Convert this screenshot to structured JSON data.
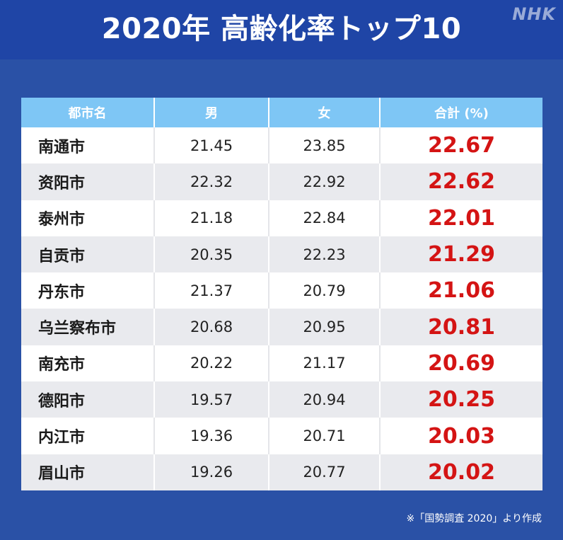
{
  "title": "2020年 高齢化率トップ10",
  "logo": "NHK",
  "table": {
    "headers": [
      "都市名",
      "男",
      "女",
      "合計 (%)"
    ],
    "rows": [
      {
        "city": "南通市",
        "male": "21.45",
        "female": "23.85",
        "total": "22.67"
      },
      {
        "city": "资阳市",
        "male": "22.32",
        "female": "22.92",
        "total": "22.62"
      },
      {
        "city": "泰州市",
        "male": "21.18",
        "female": "22.84",
        "total": "22.01"
      },
      {
        "city": "自贡市",
        "male": "20.35",
        "female": "22.23",
        "total": "21.29"
      },
      {
        "city": "丹东市",
        "male": "21.37",
        "female": "20.79",
        "total": "21.06"
      },
      {
        "city": "乌兰察布市",
        "male": "20.68",
        "female": "20.95",
        "total": "20.81"
      },
      {
        "city": "南充市",
        "male": "20.22",
        "female": "21.17",
        "total": "20.69"
      },
      {
        "city": "德阳市",
        "male": "19.57",
        "female": "20.94",
        "total": "20.25"
      },
      {
        "city": "内江市",
        "male": "19.36",
        "female": "20.71",
        "total": "20.03"
      },
      {
        "city": "眉山市",
        "male": "19.26",
        "female": "20.77",
        "total": "20.02"
      }
    ]
  },
  "source": "※「国勢調査 2020」より作成",
  "colors": {
    "background": "#2a51a6",
    "header_bar": "#1f45a6",
    "table_header": "#7ec6f5",
    "total_text": "#d41414"
  }
}
